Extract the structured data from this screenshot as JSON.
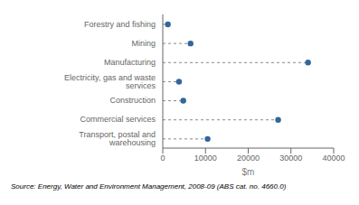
{
  "chart_data": {
    "type": "dot",
    "orientation": "horizontal",
    "categories": [
      "Transport, postal and warehousing",
      "Commercial services",
      "Construction",
      "Electricity, gas and waste services",
      "Manufacturing",
      "Mining",
      "Forestry and fishing"
    ],
    "values": [
      10500,
      27000,
      4800,
      3800,
      34000,
      6500,
      1200
    ],
    "color": "#336699",
    "line_style": "dashed",
    "marker": "circle",
    "xlabel": "$m",
    "xlim": [
      0,
      40000
    ],
    "xticks": [
      0,
      10000,
      20000,
      30000,
      40000
    ],
    "grid": false,
    "source": "Source: Energy, Water and Environment Management, 2008-09 (ABS cat. no. 4660.0)"
  }
}
